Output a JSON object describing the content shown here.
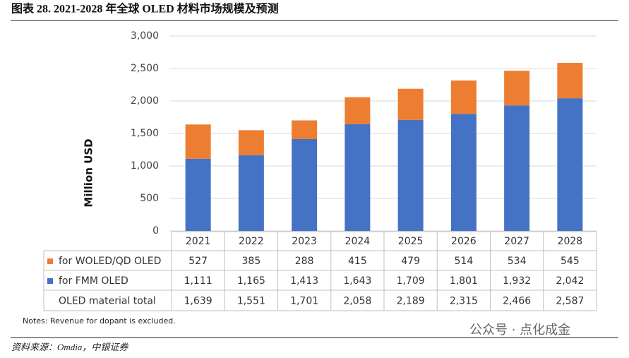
{
  "header": {
    "title": "图表 28. 2021-2028 年全球 OLED 材料市场规模及预测"
  },
  "chart_data": {
    "type": "bar",
    "stacked": true,
    "y_label": "Million USD",
    "categories": [
      "2021",
      "2022",
      "2023",
      "2024",
      "2025",
      "2026",
      "2027",
      "2028"
    ],
    "series": [
      {
        "name": "for WOLED/QD OLED",
        "color": "#ed7d31",
        "values": [
          527,
          385,
          288,
          415,
          479,
          514,
          534,
          545
        ]
      },
      {
        "name": "for FMM OLED",
        "color": "#4472c4",
        "values": [
          1111,
          1165,
          1413,
          1643,
          1709,
          1801,
          1932,
          2042
        ],
        "value_labels": [
          "1,111",
          "1,165",
          "1,413",
          "1,643",
          "1,709",
          "1,801",
          "1,932",
          "2,042"
        ]
      }
    ],
    "total": {
      "name": "OLED material total",
      "values": [
        1639,
        1551,
        1701,
        2058,
        2189,
        2315,
        2466,
        2587
      ],
      "value_labels": [
        "1,639",
        "1,551",
        "1,701",
        "2,058",
        "2,189",
        "2,315",
        "2,466",
        "2,587"
      ]
    },
    "ylim": [
      0,
      3000
    ],
    "yticks": [
      0,
      500,
      {
        "value": 1000,
        "label": "1,000"
      },
      {
        "value": 1500,
        "label": "1,500"
      },
      {
        "value": 2000,
        "label": "2,000"
      },
      {
        "value": 2500,
        "label": "2,500"
      },
      {
        "value": 3000,
        "label": "3,000"
      }
    ],
    "grid": true,
    "note": "Notes: Revenue for dopant is excluded."
  },
  "footer": {
    "source": "资料来源：Omdia，中银证券",
    "watermark": "公众号 · 点化成金"
  }
}
